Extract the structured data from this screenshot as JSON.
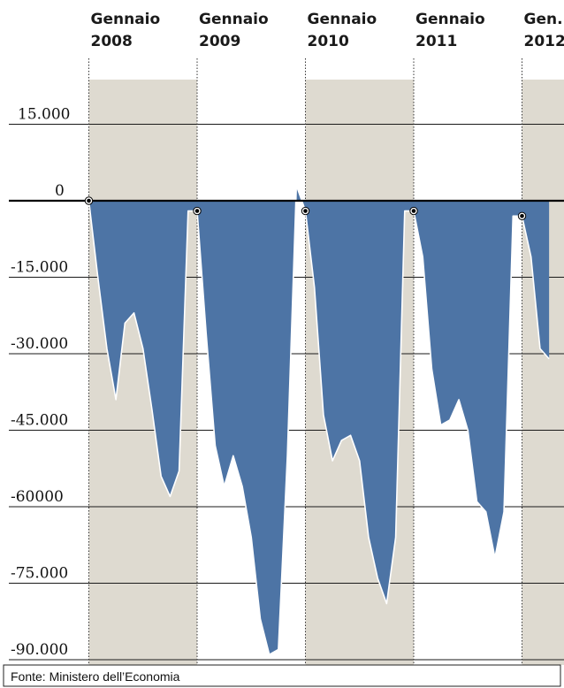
{
  "chart_data": {
    "type": "area",
    "title": "",
    "xlabel": "",
    "ylabel": "",
    "source": "Fonte: Ministero dell’Economia",
    "year_labels": [
      {
        "line1": "Gennaio",
        "line2": "2008",
        "month_index": 0
      },
      {
        "line1": "Gennaio",
        "line2": "2009",
        "month_index": 12
      },
      {
        "line1": "Gennaio",
        "line2": "2010",
        "month_index": 24
      },
      {
        "line1": "Gennaio",
        "line2": "2011",
        "month_index": 36
      },
      {
        "line1": "Gen.",
        "line2": "2012",
        "month_index": 48
      }
    ],
    "yticks": [
      {
        "value": 15000,
        "label": "15.000"
      },
      {
        "value": 0,
        "label": "0"
      },
      {
        "value": -15000,
        "label": "-15.000"
      },
      {
        "value": -30000,
        "label": "-30.000"
      },
      {
        "value": -45000,
        "label": "-45.000"
      },
      {
        "value": -60000,
        "label": "-60000"
      },
      {
        "value": -75000,
        "label": "-75.000"
      },
      {
        "value": -90000,
        "label": "-90.000"
      }
    ],
    "ylim": [
      -90000,
      15000
    ],
    "grid": true,
    "shaded_years": [
      2008,
      2010,
      2012
    ],
    "colors": {
      "area": "#4d74a5",
      "shade": "#dedad0",
      "grid": "#1a1a1a",
      "outline": "#ffffff"
    },
    "series": [
      {
        "x": [
          "2008-01",
          "2008-02",
          "2008-03",
          "2008-04",
          "2008-05",
          "2008-06",
          "2008-07",
          "2008-08",
          "2008-09",
          "2008-10",
          "2008-11",
          "2008-12",
          "2009-01",
          "2009-02",
          "2009-03",
          "2009-04",
          "2009-05",
          "2009-06",
          "2009-07",
          "2009-08",
          "2009-09",
          "2009-10",
          "2009-11",
          "2009-12",
          "2010-01",
          "2010-02",
          "2010-03",
          "2010-04",
          "2010-05",
          "2010-06",
          "2010-07",
          "2010-08",
          "2010-09",
          "2010-10",
          "2010-11",
          "2010-12",
          "2011-01",
          "2011-02",
          "2011-03",
          "2011-04",
          "2011-05",
          "2011-06",
          "2011-07",
          "2011-08",
          "2011-09",
          "2011-10",
          "2011-11",
          "2011-12",
          "2012-01",
          "2012-02",
          "2012-03",
          "2012-04"
        ],
        "values": [
          0,
          -15000,
          -29000,
          -39000,
          -24000,
          -22000,
          -29000,
          -41000,
          -54000,
          -58000,
          -53000,
          -2000,
          -2000,
          -26000,
          -48000,
          -56000,
          -50000,
          -56000,
          -66000,
          -82000,
          -89000,
          -88000,
          -50000,
          3000,
          -2000,
          -17000,
          -42000,
          -51000,
          -47000,
          -46000,
          -51000,
          -66000,
          -74000,
          -79000,
          -66000,
          -2000,
          -2000,
          -11000,
          -33000,
          -44000,
          -43000,
          -39000,
          -45000,
          -59000,
          -61000,
          -70000,
          -61000,
          -3000,
          -3000,
          -11000,
          -29000,
          -31000
        ]
      }
    ]
  }
}
